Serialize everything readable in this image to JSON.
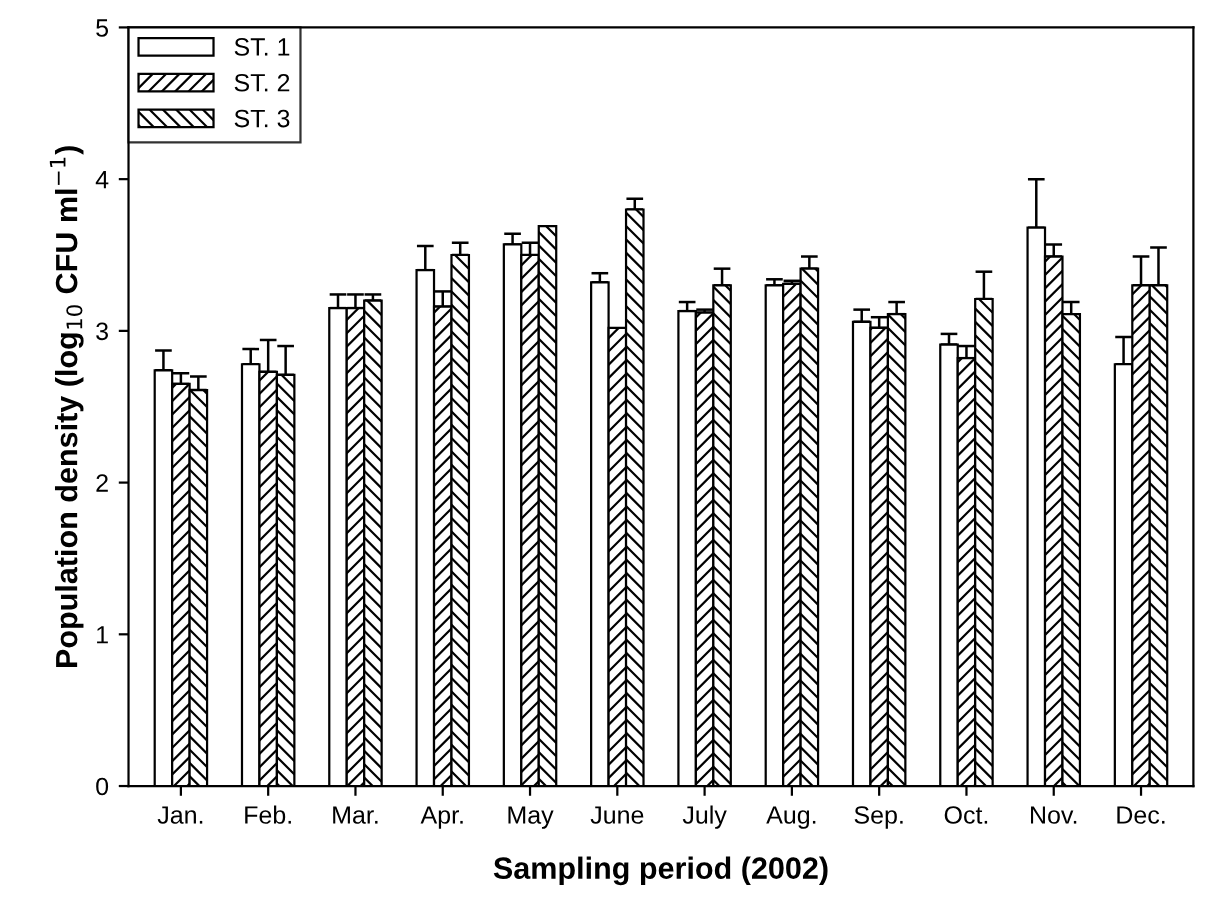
{
  "chart_data": {
    "type": "bar",
    "xlabel": "Sampling period (2002)",
    "ylabel": "Population density (log$_{10}$ CFU ml$^{−1}$)",
    "categories": [
      "Jan.",
      "Feb.",
      "Mar.",
      "Apr.",
      "May",
      "June",
      "July",
      "Aug.",
      "Sep.",
      "Oct.",
      "Nov.",
      "Dec."
    ],
    "series": [
      {
        "name": "ST. 1",
        "color": "#ffffff",
        "values": [
          2.74,
          2.78,
          3.15,
          3.4,
          3.57,
          3.32,
          3.13,
          3.3,
          3.06,
          2.91,
          3.68,
          2.78
        ],
        "errors": [
          0.13,
          0.1,
          0.09,
          0.16,
          0.07,
          0.06,
          0.06,
          0.04,
          0.08,
          0.07,
          0.32,
          0.18
        ]
      },
      {
        "name": "ST. 2",
        "color": "#000000",
        "values": [
          2.65,
          2.73,
          3.15,
          3.16,
          3.5,
          3.02,
          3.12,
          3.31,
          3.02,
          2.82,
          3.49,
          3.3
        ],
        "errors": [
          0.07,
          0.21,
          0.09,
          0.1,
          0.08,
          null,
          0.02,
          0.02,
          0.07,
          0.08,
          0.08,
          0.19
        ]
      },
      {
        "name": "ST. 3",
        "color": "#000000",
        "values": [
          2.61,
          2.71,
          3.2,
          3.5,
          3.69,
          3.8,
          3.3,
          3.41,
          3.11,
          3.21,
          3.11,
          3.3
        ],
        "errors": [
          0.09,
          0.19,
          0.04,
          0.08,
          null,
          0.07,
          0.11,
          0.08,
          0.08,
          0.18,
          0.08,
          0.25
        ]
      }
    ],
    "ylim": [
      0,
      5
    ],
    "yticks": [
      0,
      1,
      2,
      3,
      4,
      5
    ],
    "legend": "top left",
    "grid": false
  }
}
